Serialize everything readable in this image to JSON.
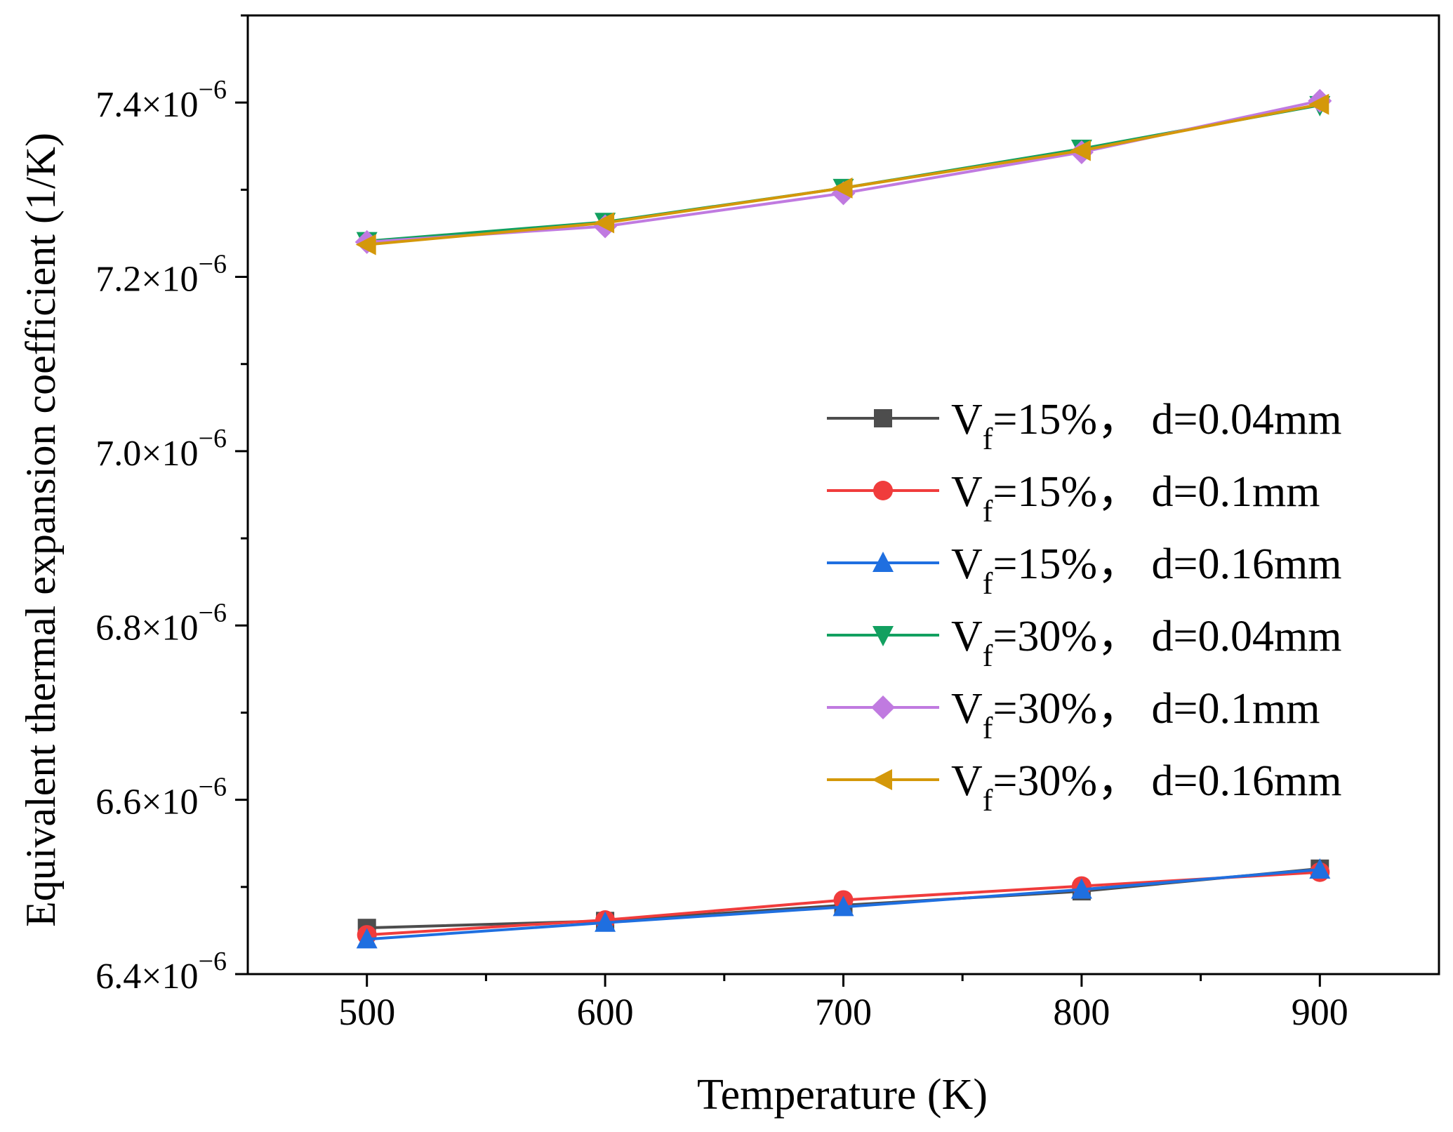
{
  "chart_data": {
    "type": "line",
    "title": "",
    "xlabel": "Temperature (K)",
    "ylabel": "Equivalent thermal expansion coefficient (1/K)",
    "xlim": [
      450,
      950
    ],
    "ylim": [
      6.4e-06,
      7.5e-06
    ],
    "x": [
      500,
      600,
      700,
      800,
      900
    ],
    "x_ticks": [
      "500",
      "600",
      "700",
      "800",
      "900"
    ],
    "y_ticks": [
      {
        "value": 6.4e-06,
        "mantissa": "6.4",
        "times": "×10",
        "exp": "−6"
      },
      {
        "value": 6.6e-06,
        "mantissa": "6.6",
        "times": "×10",
        "exp": "−6"
      },
      {
        "value": 6.8e-06,
        "mantissa": "6.8",
        "times": "×10",
        "exp": "−6"
      },
      {
        "value": 7e-06,
        "mantissa": "7.0",
        "times": "×10",
        "exp": "−6"
      },
      {
        "value": 7.2e-06,
        "mantissa": "7.2",
        "times": "×10",
        "exp": "−6"
      },
      {
        "value": 7.4e-06,
        "mantissa": "7.4",
        "times": "×10",
        "exp": "−6"
      }
    ],
    "legend_position": "right-middle",
    "series": [
      {
        "id": "vf15-d004",
        "name_main": "V",
        "name_sub": "f",
        "name_rest": "=15%， d=0.04mm",
        "color": "#4d4d4d",
        "marker": "square",
        "values": [
          6.453e-06,
          6.461e-06,
          6.479e-06,
          6.495e-06,
          6.521e-06
        ]
      },
      {
        "id": "vf15-d01",
        "name_main": "V",
        "name_sub": "f",
        "name_rest": "=15%， d=0.1mm",
        "color": "#f03c3c",
        "marker": "circle",
        "values": [
          6.445e-06,
          6.462e-06,
          6.485e-06,
          6.501e-06,
          6.517e-06
        ]
      },
      {
        "id": "vf15-d016",
        "name_main": "V",
        "name_sub": "f",
        "name_rest": "=15%， d=0.16mm",
        "color": "#1f6fe0",
        "marker": "triangle-up",
        "values": [
          6.44e-06,
          6.459e-06,
          6.477e-06,
          6.497e-06,
          6.52e-06
        ]
      },
      {
        "id": "vf30-d004",
        "name_main": "V",
        "name_sub": "f",
        "name_rest": "=30%， d=0.04mm",
        "color": "#12a060",
        "marker": "triangle-down",
        "values": [
          7.241e-06,
          7.263e-06,
          7.302e-06,
          7.347e-06,
          7.397e-06
        ]
      },
      {
        "id": "vf30-d01",
        "name_main": "V",
        "name_sub": "f",
        "name_rest": "=30%， d=0.1mm",
        "color": "#c07ae0",
        "marker": "diamond",
        "values": [
          7.24e-06,
          7.258e-06,
          7.296e-06,
          7.343e-06,
          7.402e-06
        ]
      },
      {
        "id": "vf30-d016",
        "name_main": "V",
        "name_sub": "f",
        "name_rest": "=30%， d=0.16mm",
        "color": "#d4980a",
        "marker": "triangle-left",
        "values": [
          7.237e-06,
          7.262e-06,
          7.302e-06,
          7.345e-06,
          7.398e-06
        ]
      }
    ]
  }
}
